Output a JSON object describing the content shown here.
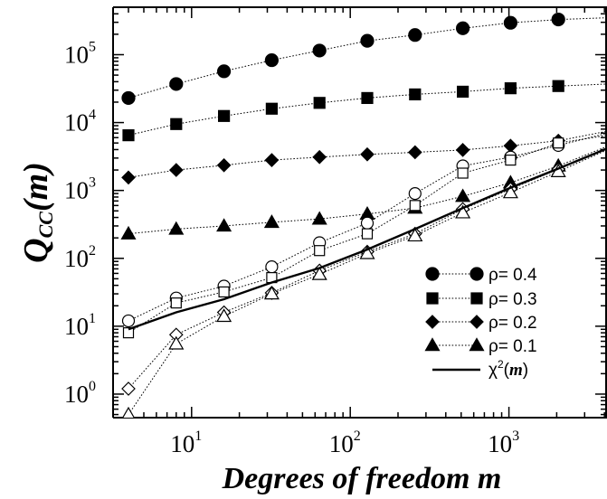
{
  "chart_data": {
    "type": "line",
    "xlabel": "Degrees of freedom m",
    "ylabel": {
      "main": "Q",
      "sub": "CC",
      "arg": "(m)"
    },
    "x_scale": "log",
    "y_scale": "log",
    "xlim": [
      3.2,
      4096
    ],
    "ylim": [
      0.45,
      500000
    ],
    "x_ticks": [
      {
        "value": 10,
        "base": "10",
        "exp": "1"
      },
      {
        "value": 100,
        "base": "10",
        "exp": "2"
      },
      {
        "value": 1000,
        "base": "10",
        "exp": "3"
      }
    ],
    "y_ticks": [
      {
        "value": 1,
        "base": "10",
        "exp": "0"
      },
      {
        "value": 10,
        "base": "10",
        "exp": "1"
      },
      {
        "value": 100,
        "base": "10",
        "exp": "2"
      },
      {
        "value": 1000,
        "base": "10",
        "exp": "3"
      },
      {
        "value": 10000,
        "base": "10",
        "exp": "4"
      },
      {
        "value": 100000,
        "base": "10",
        "exp": "5"
      }
    ],
    "x": [
      4,
      8,
      16,
      32,
      64,
      128,
      256,
      512,
      1024,
      2048
    ],
    "series": [
      {
        "name": "ρ= 0.4",
        "marker": "circle",
        "filled": true,
        "values": [
          23000,
          37000,
          57000,
          83000,
          115000,
          160000,
          195000,
          245000,
          295000,
          330000
        ],
        "extend_to": 350000
      },
      {
        "name": "ρ= 0.3",
        "marker": "square",
        "filled": true,
        "values": [
          6500,
          9500,
          12500,
          16000,
          19500,
          23000,
          26000,
          28500,
          32000,
          34500
        ],
        "extend_to": 37000
      },
      {
        "name": "ρ= 0.2",
        "marker": "diamond",
        "filled": true,
        "values": [
          1550,
          2000,
          2350,
          2800,
          3100,
          3400,
          3650,
          3950,
          4550,
          5400
        ],
        "extend_to": 7500
      },
      {
        "name": "ρ= 0.1",
        "marker": "triangle",
        "filled": true,
        "values": [
          230,
          270,
          300,
          340,
          380,
          450,
          550,
          820,
          1300,
          2300
        ],
        "extend_to": 4500
      },
      {
        "name": "",
        "marker": "circle",
        "filled": false,
        "values": [
          12,
          26,
          39,
          75,
          170,
          330,
          900,
          2300,
          3100,
          4600
        ],
        "extend_to": 7000
      },
      {
        "name": "",
        "marker": "square",
        "filled": false,
        "values": [
          8,
          22,
          32,
          52,
          130,
          230,
          600,
          1800,
          2800,
          5000
        ],
        "extend_to": 6500
      },
      {
        "name": "",
        "marker": "diamond",
        "filled": false,
        "values": [
          1.2,
          7.5,
          16,
          31,
          66,
          125,
          230,
          530,
          1050,
          2050
        ],
        "extend_to": 4200
      },
      {
        "name": "",
        "marker": "triangle",
        "filled": false,
        "values": [
          0.5,
          5.5,
          14,
          30,
          58,
          118,
          215,
          470,
          930,
          1900
        ],
        "extend_to": 4000
      },
      {
        "name": "χ²(m)",
        "marker": "none",
        "solid": true,
        "values": [
          9,
          16,
          25,
          44,
          72,
          135,
          270,
          550,
          1100,
          2100
        ],
        "extend_to": 4200
      }
    ],
    "legend": {
      "position": "lower-right",
      "entries": [
        {
          "marker": "circle",
          "prefix": "ρ= ",
          "value": "0.4"
        },
        {
          "marker": "square",
          "prefix": "ρ= ",
          "value": "0.3"
        },
        {
          "marker": "diamond",
          "prefix": "ρ= ",
          "value": "0.2"
        },
        {
          "marker": "triangle",
          "prefix": "ρ= ",
          "value": "0.1"
        },
        {
          "marker": "line",
          "chi": "χ",
          "sup": "2",
          "arg": "m"
        }
      ]
    }
  }
}
